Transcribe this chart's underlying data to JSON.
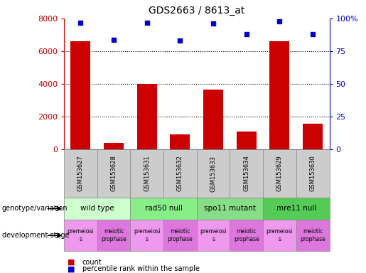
{
  "title": "GDS2663 / 8613_at",
  "samples": [
    "GSM153627",
    "GSM153628",
    "GSM153631",
    "GSM153632",
    "GSM153633",
    "GSM153634",
    "GSM153629",
    "GSM153630"
  ],
  "counts": [
    6600,
    400,
    4000,
    950,
    3650,
    1100,
    6600,
    1600
  ],
  "percentiles": [
    97,
    84,
    97,
    83,
    96,
    88,
    98,
    88
  ],
  "ylim_left": [
    0,
    8000
  ],
  "ylim_right": [
    0,
    100
  ],
  "yticks_left": [
    0,
    2000,
    4000,
    6000,
    8000
  ],
  "yticks_right": [
    0,
    25,
    50,
    75,
    100
  ],
  "bar_color": "#cc0000",
  "dot_color": "#0000cc",
  "genotype_groups": [
    {
      "label": "wild type",
      "start": 0,
      "end": 2,
      "color": "#ccffcc"
    },
    {
      "label": "rad50 null",
      "start": 2,
      "end": 4,
      "color": "#88ee88"
    },
    {
      "label": "spo11 mutant",
      "start": 4,
      "end": 6,
      "color": "#88dd88"
    },
    {
      "label": "mre11 null",
      "start": 6,
      "end": 8,
      "color": "#55cc55"
    }
  ],
  "dev_stage_groups": [
    {
      "label": "premeiosi\ns",
      "start": 0,
      "end": 1,
      "color": "#ee99ee"
    },
    {
      "label": "meiotic\nprophase",
      "start": 1,
      "end": 2,
      "color": "#dd77dd"
    },
    {
      "label": "premeiosi\ns",
      "start": 2,
      "end": 3,
      "color": "#ee99ee"
    },
    {
      "label": "meiotic\nprophase",
      "start": 3,
      "end": 4,
      "color": "#dd77dd"
    },
    {
      "label": "premeiosi\ns",
      "start": 4,
      "end": 5,
      "color": "#ee99ee"
    },
    {
      "label": "meiotic\nprophase",
      "start": 5,
      "end": 6,
      "color": "#dd77dd"
    },
    {
      "label": "premeiosi\ns",
      "start": 6,
      "end": 7,
      "color": "#ee99ee"
    },
    {
      "label": "meiotic\nprophase",
      "start": 7,
      "end": 8,
      "color": "#dd77dd"
    }
  ],
  "left_label": "genotype/variation",
  "right_label": "development stage",
  "legend_count_label": "count",
  "legend_pct_label": "percentile rank within the sample",
  "sample_row_color": "#cccccc",
  "left_axis_color": "#cc0000",
  "right_axis_color": "#0000cc",
  "figsize": [
    5.15,
    3.84
  ],
  "dpi": 100
}
